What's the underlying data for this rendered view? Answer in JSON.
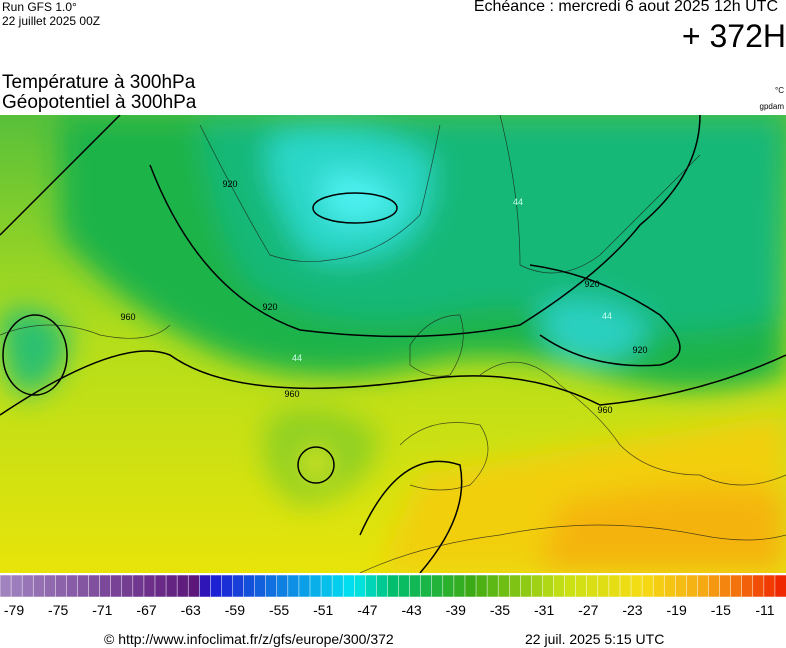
{
  "header": {
    "run": "Run GFS 1.0°",
    "run_date": "22 juillet 2025 00Z",
    "valid": "Echéance : mercredi 6 aout 2025 12h UTC",
    "lead": "+ 372H",
    "title1": "Température à 300hPa",
    "title2": "Géopotentiel à 300hPa",
    "unit1": "°C",
    "unit2": "gpdam"
  },
  "contour_labels": [
    "920",
    "920",
    "920",
    "920",
    "960",
    "960",
    "960",
    "44",
    "44",
    "44"
  ],
  "colorbar": {
    "ticks": [
      -79,
      -75,
      -71,
      -67,
      -63,
      -59,
      -55,
      -51,
      -47,
      -43,
      -39,
      -35,
      -31,
      -27,
      -23,
      -19,
      -15,
      -11
    ]
  },
  "footer": {
    "url": "© http://www.infoclimat.fr/z/gfs/europe/300/372",
    "date": "22 juil. 2025  5:15 UTC"
  }
}
